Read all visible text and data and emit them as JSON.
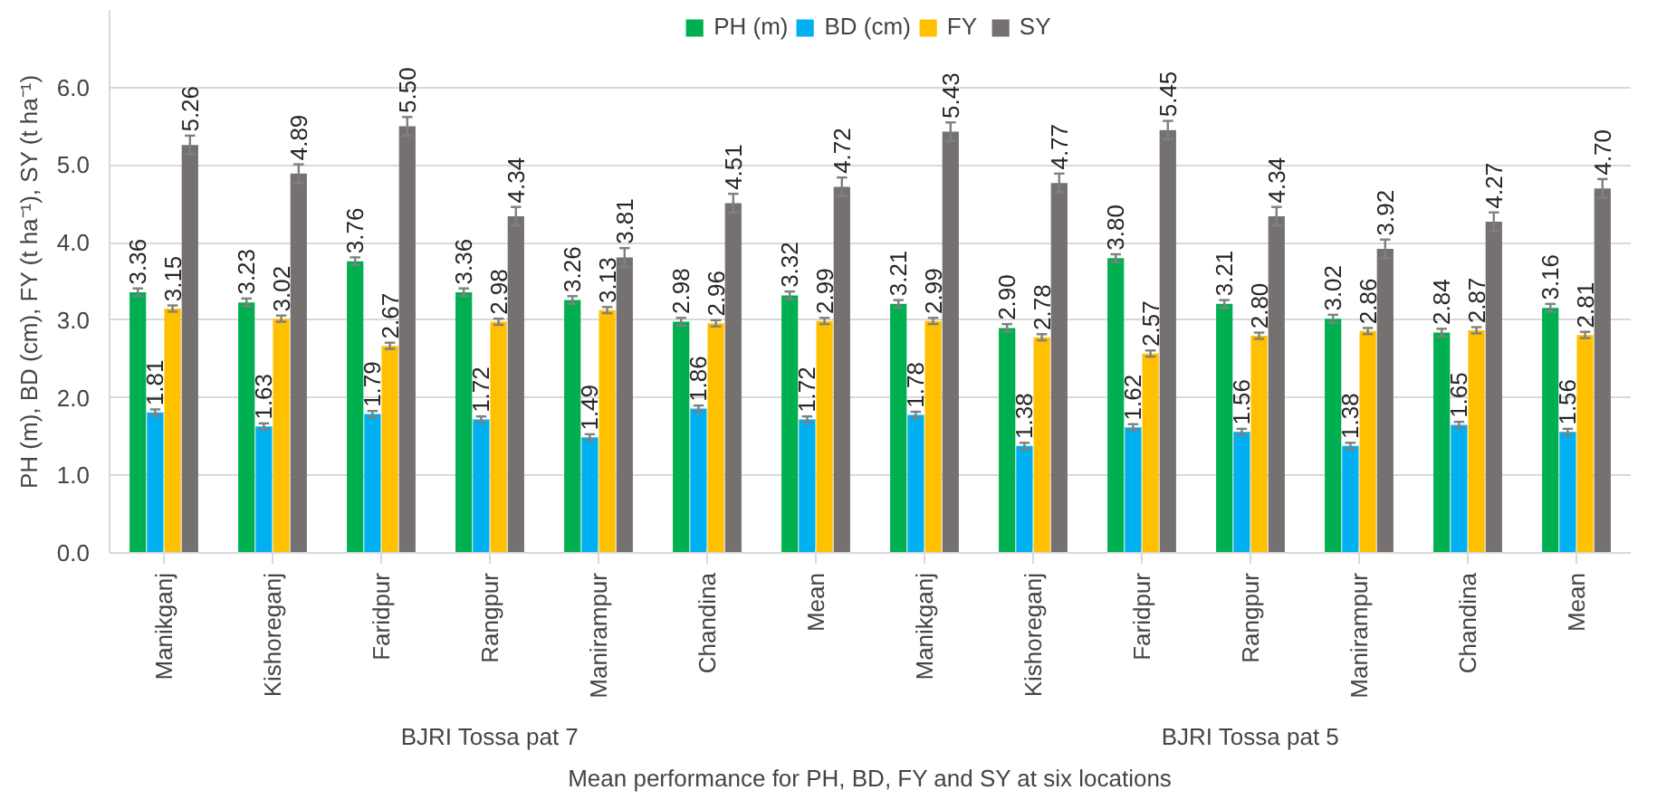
{
  "chart_data": {
    "type": "bar",
    "xlabel": "Mean performance for PH, BD, FY and SY at six locations",
    "ylabel": "PH (m), BD (cm), FY (t ha⁻¹), SY (t ha⁻¹)",
    "categories": [
      "Manikganj",
      "Kishoreganj",
      "Faridpur",
      "Rangpur",
      "Manirampur",
      "Chandina",
      "Mean",
      "Manikganj",
      "Kishoreganj",
      "Faridpur",
      "Rangpur",
      "Manirampur",
      "Chandina",
      "Mean"
    ],
    "annotations": [
      "BJRI Tossa pat 7",
      "BJRI Tossa pat 5"
    ],
    "series": [
      {
        "name": "PH (m)",
        "color": "#00b050",
        "values": [
          3.36,
          3.23,
          3.76,
          3.36,
          3.26,
          2.98,
          3.32,
          3.21,
          2.9,
          3.8,
          3.21,
          3.02,
          2.84,
          3.16
        ],
        "value_labels": [
          "3.36",
          "3.23",
          "3.76",
          "3.36",
          "3.26",
          "2.98",
          "3.32",
          "3.21",
          "2.90",
          "3.80",
          "3.21",
          "3.02",
          "2.84",
          "3.16"
        ],
        "errors": [
          0.05,
          0.05,
          0.05,
          0.05,
          0.05,
          0.05,
          0.05,
          0.05,
          0.05,
          0.05,
          0.05,
          0.05,
          0.05,
          0.05
        ]
      },
      {
        "name": "BD (cm)",
        "color": "#00b0f0",
        "values": [
          1.81,
          1.63,
          1.79,
          1.72,
          1.49,
          1.86,
          1.72,
          1.78,
          1.38,
          1.62,
          1.56,
          1.38,
          1.65,
          1.56
        ],
        "value_labels": [
          "1.81",
          "1.63",
          "1.79",
          "1.72",
          "1.49",
          "1.86",
          "1.72",
          "1.78",
          "1.38",
          "1.62",
          "1.56",
          "1.38",
          "1.65",
          "1.56"
        ],
        "errors": [
          0.04,
          0.04,
          0.04,
          0.04,
          0.04,
          0.04,
          0.04,
          0.04,
          0.04,
          0.04,
          0.04,
          0.04,
          0.04,
          0.04
        ]
      },
      {
        "name": "FY",
        "color": "#ffc000",
        "values": [
          3.15,
          3.02,
          2.67,
          2.98,
          3.13,
          2.96,
          2.99,
          2.99,
          2.78,
          2.57,
          2.8,
          2.86,
          2.87,
          2.81
        ],
        "value_labels": [
          "3.15",
          "3.02",
          "2.67",
          "2.98",
          "3.13",
          "2.96",
          "2.99",
          "2.99",
          "2.78",
          "2.57",
          "2.80",
          "2.86",
          "2.87",
          "2.81"
        ],
        "errors": [
          0.04,
          0.04,
          0.04,
          0.04,
          0.04,
          0.04,
          0.04,
          0.04,
          0.04,
          0.04,
          0.04,
          0.04,
          0.04,
          0.04
        ]
      },
      {
        "name": "SY",
        "color": "#767171",
        "values": [
          5.26,
          4.89,
          5.5,
          4.34,
          3.81,
          4.51,
          4.72,
          5.43,
          4.77,
          5.45,
          4.34,
          3.92,
          4.27,
          4.7
        ],
        "value_labels": [
          "5.26",
          "4.89",
          "5.50",
          "4.34",
          "3.81",
          "4.51",
          "4.72",
          "5.43",
          "4.77",
          "5.45",
          "4.34",
          "3.92",
          "4.27",
          "4.70"
        ],
        "errors": [
          0.12,
          0.12,
          0.12,
          0.12,
          0.12,
          0.12,
          0.12,
          0.12,
          0.12,
          0.12,
          0.12,
          0.12,
          0.12,
          0.12
        ]
      }
    ],
    "ylim": [
      0,
      7.0
    ],
    "yticks": [
      {
        "value": 0,
        "label": "0.0"
      },
      {
        "value": 1,
        "label": "1.0"
      },
      {
        "value": 2,
        "label": "2.0"
      },
      {
        "value": 3,
        "label": "3.0"
      },
      {
        "value": 4,
        "label": "4.0"
      },
      {
        "value": 5,
        "label": "5.0"
      },
      {
        "value": 6,
        "label": "6.0"
      }
    ],
    "grid": "y",
    "legend": "top"
  }
}
